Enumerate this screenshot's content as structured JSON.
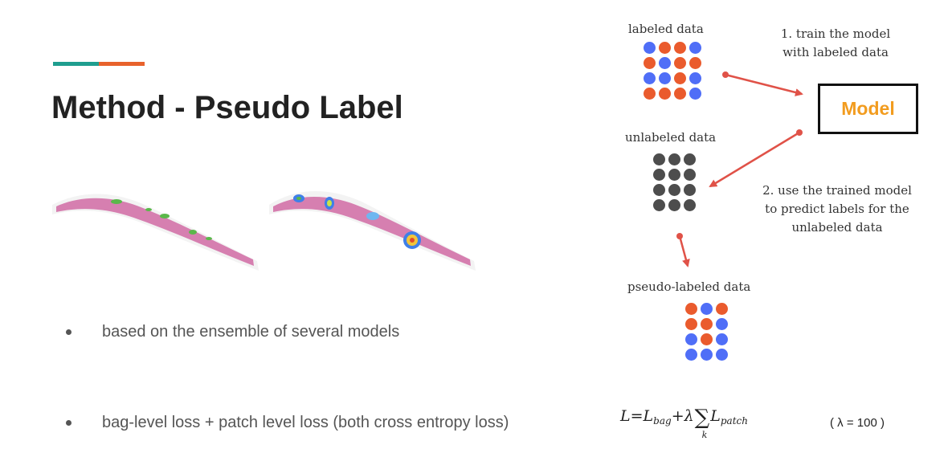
{
  "slide": {
    "title": "Method - Pseudo Label",
    "accent_colors": [
      "#1f9e8f",
      "#e8622c"
    ],
    "bullets": [
      "based on the ensemble of several models",
      "bag-level loss  + patch level loss (both cross entropy loss)"
    ]
  },
  "diagram": {
    "labeled_label": "labeled data",
    "unlabeled_label": "unlabeled data",
    "pseudo_label": "pseudo-labeled data",
    "model_label": "Model",
    "step1": [
      "1. train the model",
      "with labeled data"
    ],
    "step2": [
      "2. use the trained model",
      "to predict labels for the",
      "unlabeled data"
    ],
    "colors": {
      "blue": "#4f6ef7",
      "orange": "#ea5b2d",
      "gray": "#4d4d4d",
      "arrow": "#e05248",
      "model_text": "#f29c1f"
    },
    "labeled_grid": [
      [
        "blue",
        "orange",
        "orange",
        "blue"
      ],
      [
        "orange",
        "blue",
        "orange",
        "orange"
      ],
      [
        "blue",
        "blue",
        "orange",
        "blue"
      ],
      [
        "orange",
        "orange",
        "orange",
        "blue"
      ]
    ],
    "unlabeled_grid": [
      [
        "gray",
        "gray",
        "gray"
      ],
      [
        "gray",
        "gray",
        "gray"
      ],
      [
        "gray",
        "gray",
        "gray"
      ],
      [
        "gray",
        "gray",
        "gray"
      ]
    ],
    "pseudo_grid": [
      [
        "orange",
        "blue",
        "orange"
      ],
      [
        "orange",
        "orange",
        "blue"
      ],
      [
        "blue",
        "orange",
        "blue"
      ],
      [
        "blue",
        "blue",
        "blue"
      ]
    ]
  },
  "formula": {
    "lhs": "L",
    "eq": "=",
    "bag_term": "L",
    "bag_sub": "bag",
    "plus_lambda": "+λ",
    "sum": "∑",
    "sum_index": "k",
    "patch_term": "L",
    "patch_sub": "patch",
    "lambda_note": "( λ = 100 )"
  }
}
